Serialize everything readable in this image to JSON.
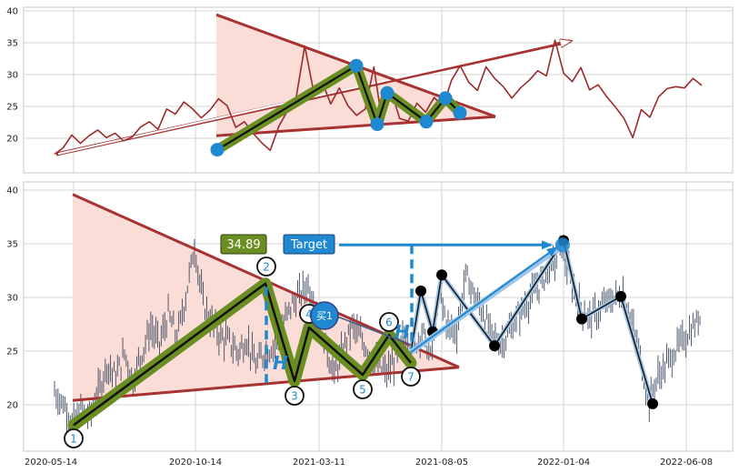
{
  "colors": {
    "price_line": "#9b2b2b",
    "triangle_edge": "#a83232",
    "triangle_fill": "#f9ddd6",
    "pattern_green": "#6b8e23",
    "pattern_core": "#111111",
    "marker_blue": "#1f88d0",
    "projection_line": "#1a1a1a",
    "projection_halo": "#9fc5e8",
    "dashed_blue": "#1f88d0",
    "candle": "#3e4a61",
    "grid": "#d6d6d6",
    "frame": "#c8c8c8"
  },
  "chart_data": [
    {
      "type": "line",
      "title": "",
      "xlabel": "",
      "ylabel": "",
      "ylim": [
        15,
        40
      ],
      "yticks": [
        20,
        25,
        30,
        35,
        40
      ],
      "grid": true,
      "series": [
        {
          "values": [
            17.5,
            18.5,
            20.5,
            19.2,
            20.4,
            21.3,
            20.1,
            20.8,
            19.6,
            20.2,
            21.8,
            22.6,
            21.4,
            24.6,
            23.8,
            25.7,
            24.6,
            23.2,
            24.4,
            26.2,
            25.1,
            21.7,
            22.6,
            20.8,
            19.3,
            18.1,
            21.9,
            24.3,
            26.4,
            34.5,
            27.5,
            28.9,
            25.4,
            27.9,
            25.1,
            23.6,
            24.6,
            31.2,
            22.3,
            27.5,
            23.1,
            22.7,
            25.5,
            24.1,
            26.4,
            24.9,
            29.1,
            31.4,
            28.8,
            27.5,
            31.2,
            29.4,
            28.1,
            26.3,
            27.9,
            29.1,
            30.6,
            29.8,
            35.4,
            30.2,
            28.9,
            31.1,
            27.6,
            28.4,
            26.5,
            24.9,
            23.1,
            20.1,
            24.5,
            23.3,
            26.5,
            27.8,
            28.1,
            27.9,
            29.4,
            28.3
          ]
        }
      ],
      "pattern_points": [
        18.2,
        31.4,
        22.2,
        27.1,
        22.6,
        26.3,
        24.0
      ],
      "triangle": {
        "upper": [
          39.4,
          23.4
        ],
        "lower": [
          20.4,
          23.4
        ]
      },
      "arrow": {
        "from": [
          0,
          17.5
        ],
        "to": [
          1,
          35.4
        ]
      }
    },
    {
      "type": "candlestick",
      "title": "",
      "xlabel": "",
      "ylabel": "",
      "ylim": [
        15,
        40
      ],
      "yticks": [
        20,
        25,
        30,
        35,
        40
      ],
      "x_tick_labels": [
        "2020-05-14",
        "2020-10-14",
        "2021-03-11",
        "2021-08-05",
        "2022-01-04",
        "2022-06-08"
      ],
      "grid": true,
      "series": [
        {
          "close": [
            21.2,
            20.1,
            18.3,
            19.5,
            18.9,
            21.2,
            23.8,
            22.5,
            24.8,
            22.4,
            24.9,
            27.2,
            25.6,
            28.4,
            26.2,
            30.1,
            34.8,
            29.4,
            27.6,
            26.3,
            25.8,
            24.9,
            26.1,
            23.6,
            24.8,
            25.5,
            27.1,
            29.2,
            30.2,
            31.3,
            28.8,
            25.6,
            22.7,
            25.1,
            27.4,
            26.2,
            24.8,
            23.5,
            22.9,
            24.2,
            26.4,
            25.2,
            27.0,
            24.3,
            30.4,
            27.2,
            26.9,
            32.1,
            30.2,
            28.6,
            26.4,
            25.7,
            26.8,
            28.2,
            29.5,
            30.7,
            31.8,
            33.2,
            34.8,
            31.5,
            29.4,
            28.1,
            28.5,
            29.4,
            29.9,
            30.4,
            27.5,
            24.2,
            20.3,
            22.6,
            23.8,
            25.1,
            26.2,
            27.1,
            28.4
          ]
        }
      ],
      "pattern_points": [
        {
          "label": "1",
          "value": 18.1
        },
        {
          "label": "2",
          "value": 31.3
        },
        {
          "label": "3",
          "value": 22.2
        },
        {
          "label": "4",
          "value": 27.2
        },
        {
          "label": "5",
          "value": 22.8
        },
        {
          "label": "6",
          "value": 26.5
        },
        {
          "label": "7",
          "value": 23.9
        }
      ],
      "forecast_points": [
        30.6,
        26.8,
        32.1,
        25.5,
        35.3,
        28.0,
        30.1,
        20.1
      ],
      "triangle": {
        "upper": [
          39.6,
          23.5
        ],
        "lower": [
          20.4,
          23.5
        ]
      },
      "height_marks": [
        "H",
        "H"
      ],
      "target_value": 34.89,
      "target_label": "Target",
      "buy_label": "买1"
    }
  ]
}
